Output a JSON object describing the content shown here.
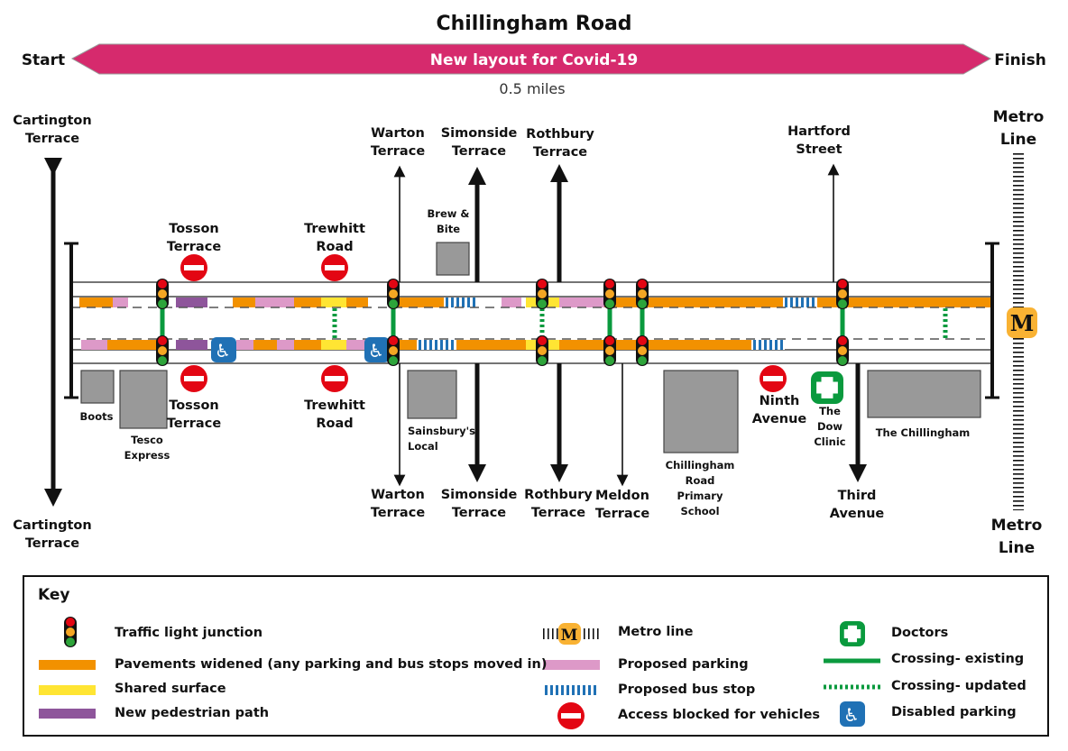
{
  "header": {
    "title": "Chillingham Road",
    "start": "Start",
    "finish": "Finish",
    "banner": "New layout for Covid-19",
    "distance": "0.5 miles"
  },
  "streets": {
    "cartington_top": "Cartington\nTerrace",
    "cartington_bottom": "Cartington\nTerrace",
    "tosson_top": "Tosson\nTerrace",
    "tosson_bottom": "Tosson\nTerrace",
    "trewhitt_top": "Trewhitt\nRoad",
    "trewhitt_bottom": "Trewhitt\nRoad",
    "warton_top": "Warton\nTerrace",
    "warton_bottom": "Warton\nTerrace",
    "simonside_top": "Simonside\nTerrace",
    "simonside_bottom": "Simonside\nTerrace",
    "rothbury_top": "Rothbury\nTerrace",
    "rothbury_bottom": "Rothbury\nTerrace",
    "meldon": "Meldon\nTerrace",
    "hartford": "Hartford\nStreet",
    "ninth": "Ninth\nAvenue",
    "third": "Third\nAvenue",
    "metro_top": "Metro\nLine",
    "metro_bottom": "Metro\nLine",
    "metro_badge": "M"
  },
  "places": {
    "brew": "Brew &\nBite",
    "boots": "Boots",
    "tesco": "Tesco\nExpress",
    "sainsburys": "Sainsbury's\nLocal",
    "school": "Chillingham\nRoad\nPrimary\nSchool",
    "dow": "The\nDow\nClinic",
    "chillingham": "The Chillingham"
  },
  "key": {
    "title": "Key",
    "items": [
      {
        "label": "Traffic light junction",
        "icon": "traffic-light"
      },
      {
        "label": "Pavements widened (any parking and bus stops moved in)",
        "color": "#F29100"
      },
      {
        "label": "Shared surface",
        "color": "#FFE533"
      },
      {
        "label": "New pedestrian path",
        "color": "#8E559B"
      },
      {
        "label": "Metro line",
        "icon": "metro"
      },
      {
        "label": "Proposed parking",
        "color": "#DD99C8"
      },
      {
        "label": "Proposed bus stop",
        "color": "#2071B5"
      },
      {
        "label": "Access blocked for vehicles",
        "icon": "no-entry"
      },
      {
        "label": "Doctors",
        "icon": "doctor-cross"
      },
      {
        "label": "Crossing- existing",
        "color": "#0A9A3E"
      },
      {
        "label": "Crossing- updated",
        "color": "#0A9A3E"
      },
      {
        "label": "Disabled parking",
        "icon": "disabled-parking"
      }
    ]
  },
  "colors": {
    "banner": "#D62A6D",
    "orange": "#F29100",
    "pink": "#DD99C8",
    "yellow": "#FFE533",
    "purple": "#8E559B",
    "green": "#0A9A3E",
    "blue": "#2071B5",
    "red": "#E30613",
    "metro": "#F9B233"
  }
}
